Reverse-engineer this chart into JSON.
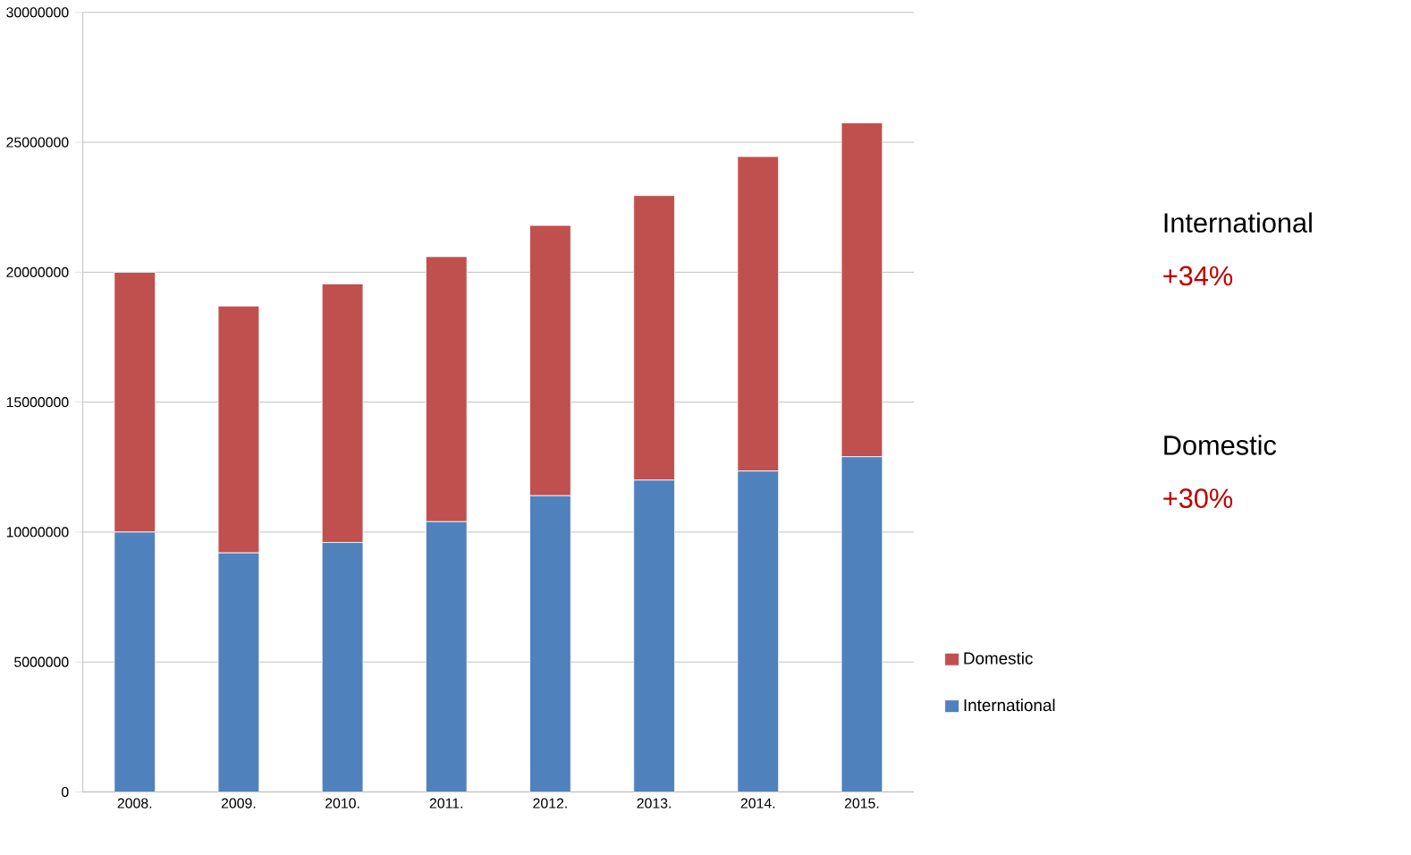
{
  "chart_data": {
    "type": "bar",
    "stacked": true,
    "categories": [
      "2008.",
      "2009.",
      "2010.",
      "2011.",
      "2012.",
      "2013.",
      "2014.",
      "2015."
    ],
    "series": [
      {
        "name": "International",
        "color": "#4f81bd",
        "values": [
          10000000,
          9200000,
          9600000,
          10400000,
          11400000,
          12000000,
          12350000,
          12900000
        ]
      },
      {
        "name": "Domestic",
        "color": "#c0504d",
        "values": [
          10000000,
          9500000,
          9950000,
          10200000,
          10400000,
          10950000,
          12100000,
          12850000
        ]
      }
    ],
    "ylim": [
      0,
      30000000
    ],
    "yticks": [
      0,
      5000000,
      10000000,
      15000000,
      20000000,
      25000000,
      30000000
    ],
    "grid": "y",
    "legend": "right",
    "annotations": [
      "International",
      "+34%",
      "Domestic",
      "+30%"
    ]
  }
}
